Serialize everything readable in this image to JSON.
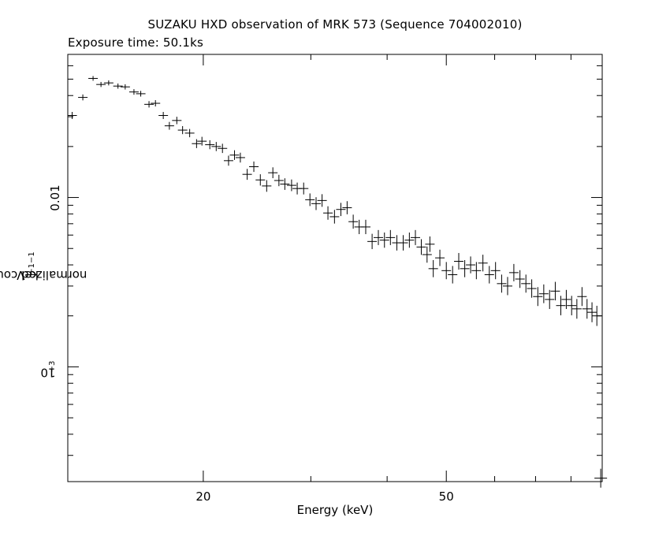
{
  "chart_data": {
    "type": "scatter",
    "title": "SUZAKU HXD observation of MRK 573 (Sequence 704002010)",
    "subtitle": "Exposure time: 50.1ks",
    "xlabel": "Energy (keV)",
    "ylabel": {
      "text": "normalized counts s",
      "sup1": "−1",
      "mid": " keV",
      "sup2": "−1"
    },
    "xscale": "log",
    "yscale": "log",
    "xlim": [
      12,
      90
    ],
    "ylim": [
      0.00021,
      0.07
    ],
    "x_tick_labels": [
      {
        "value": 20,
        "label": "20"
      },
      {
        "value": 50,
        "label": "50"
      }
    ],
    "y_tick_labels": [
      {
        "value": 0.01,
        "text": "0.01"
      },
      {
        "value": 0.001,
        "base": "10",
        "exp": "−3"
      }
    ],
    "grid": false,
    "marker": "cross-with-errorbars",
    "points": [
      [
        12.2,
        0.0305
      ],
      [
        12.7,
        0.039
      ],
      [
        13.2,
        0.0505
      ],
      [
        13.6,
        0.0465
      ],
      [
        14.0,
        0.0475
      ],
      [
        14.5,
        0.0455
      ],
      [
        14.9,
        0.045
      ],
      [
        15.4,
        0.042
      ],
      [
        15.8,
        0.041
      ],
      [
        16.3,
        0.0355
      ],
      [
        16.7,
        0.036
      ],
      [
        17.2,
        0.0305
      ],
      [
        17.6,
        0.0265
      ],
      [
        18.1,
        0.0285
      ],
      [
        18.5,
        0.025
      ],
      [
        19.0,
        0.024
      ],
      [
        19.5,
        0.0208
      ],
      [
        19.9,
        0.0215
      ],
      [
        20.5,
        0.0205
      ],
      [
        21.0,
        0.02
      ],
      [
        21.5,
        0.0195
      ],
      [
        22.0,
        0.0165
      ],
      [
        22.5,
        0.0178
      ],
      [
        23.0,
        0.0172
      ],
      [
        23.6,
        0.0137
      ],
      [
        24.2,
        0.0152
      ],
      [
        24.8,
        0.0127
      ],
      [
        25.4,
        0.0117
      ],
      [
        26.0,
        0.014
      ],
      [
        26.6,
        0.0126
      ],
      [
        27.2,
        0.012
      ],
      [
        27.9,
        0.0118
      ],
      [
        28.5,
        0.0113
      ],
      [
        29.2,
        0.0113
      ],
      [
        29.9,
        0.0097
      ],
      [
        30.6,
        0.0092
      ],
      [
        31.3,
        0.0096
      ],
      [
        32.0,
        0.0081
      ],
      [
        32.8,
        0.0077
      ],
      [
        33.6,
        0.0085
      ],
      [
        34.4,
        0.0087
      ],
      [
        35.2,
        0.0072
      ],
      [
        36.0,
        0.0067
      ],
      [
        36.9,
        0.0067
      ],
      [
        37.8,
        0.0055
      ],
      [
        38.7,
        0.0058
      ],
      [
        39.6,
        0.0056
      ],
      [
        40.5,
        0.0058
      ],
      [
        41.5,
        0.0054
      ],
      [
        42.5,
        0.0054
      ],
      [
        43.5,
        0.0056
      ],
      [
        44.5,
        0.0058
      ],
      [
        45.5,
        0.0051
      ],
      [
        46.5,
        0.0046
      ],
      [
        47.0,
        0.0053
      ],
      [
        47.6,
        0.0038
      ],
      [
        48.8,
        0.0044
      ],
      [
        50.0,
        0.0037
      ],
      [
        51.2,
        0.0035
      ],
      [
        52.4,
        0.0042
      ],
      [
        53.6,
        0.0038
      ],
      [
        54.8,
        0.004
      ],
      [
        56.0,
        0.0037
      ],
      [
        57.4,
        0.0041
      ],
      [
        58.8,
        0.0035
      ],
      [
        60.2,
        0.0037
      ],
      [
        61.6,
        0.0031
      ],
      [
        63.0,
        0.003
      ],
      [
        64.5,
        0.0036
      ],
      [
        66.0,
        0.0033
      ],
      [
        67.5,
        0.0031
      ],
      [
        69.0,
        0.0029
      ],
      [
        70.6,
        0.0026
      ],
      [
        72.2,
        0.0027
      ],
      [
        73.8,
        0.0025
      ],
      [
        75.4,
        0.0028
      ],
      [
        77.0,
        0.0023
      ],
      [
        78.6,
        0.0025
      ],
      [
        80.2,
        0.0023
      ],
      [
        81.8,
        0.0022
      ],
      [
        83.4,
        0.0026
      ],
      [
        85.0,
        0.0022
      ],
      [
        86.6,
        0.0021
      ],
      [
        88.2,
        0.002
      ],
      [
        89.5,
        0.00022
      ]
    ]
  }
}
